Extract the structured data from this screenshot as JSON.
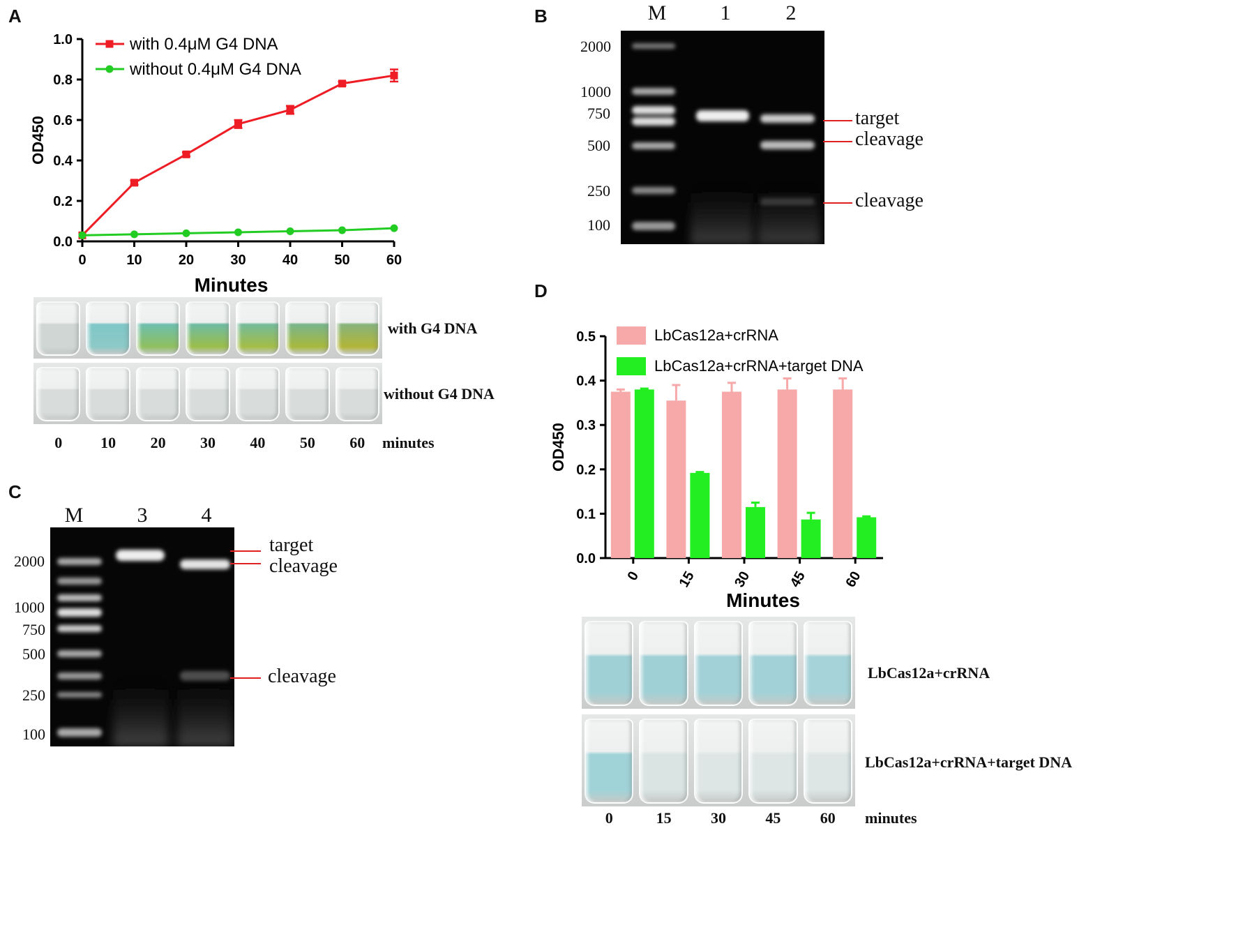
{
  "panels": {
    "a": {
      "letter": "A"
    },
    "b": {
      "letter": "B"
    },
    "c": {
      "letter": "C"
    },
    "d": {
      "letter": "D"
    }
  },
  "chart_data": [
    {
      "id": "A",
      "type": "line",
      "x": [
        0,
        10,
        20,
        30,
        40,
        50,
        60
      ],
      "series": [
        {
          "name": "with 0.4μM G4 DNA",
          "color": "#ee1c25",
          "values": [
            0.03,
            0.29,
            0.43,
            0.58,
            0.65,
            0.78,
            0.82
          ],
          "errors": [
            0.0,
            0.01,
            0.01,
            0.02,
            0.02,
            0.01,
            0.03
          ]
        },
        {
          "name": "without 0.4μM G4 DNA",
          "color": "#22cc22",
          "values": [
            0.03,
            0.035,
            0.04,
            0.045,
            0.05,
            0.055,
            0.065
          ],
          "errors": [
            0,
            0,
            0,
            0,
            0,
            0,
            0
          ]
        }
      ],
      "xlabel": "Minutes",
      "ylabel": "OD450",
      "xlim": [
        0,
        60
      ],
      "ylim": [
        0,
        1.0
      ],
      "xticks": [
        "0",
        "10",
        "20",
        "30",
        "40",
        "50",
        "60"
      ],
      "yticks": [
        "0.0",
        "0.2",
        "0.4",
        "0.6",
        "0.8",
        "1.0"
      ],
      "legend": "top-left"
    },
    {
      "id": "D",
      "type": "bar",
      "categories": [
        "0",
        "15",
        "30",
        "45",
        "60"
      ],
      "series": [
        {
          "name": "LbCas12a+crRNA",
          "color": "#f7a8a8",
          "values": [
            0.375,
            0.355,
            0.375,
            0.38,
            0.38
          ],
          "errors": [
            0.005,
            0.035,
            0.02,
            0.025,
            0.025
          ]
        },
        {
          "name": "LbCas12a+crRNA+target DNA",
          "color": "#22ee22",
          "values": [
            0.38,
            0.192,
            0.115,
            0.087,
            0.092
          ],
          "errors": [
            0.002,
            0.002,
            0.01,
            0.015,
            0.002
          ]
        }
      ],
      "xlabel": "Minutes",
      "ylabel": "OD450",
      "ylim": [
        0,
        0.5
      ],
      "yticks": [
        "0.0",
        "0.1",
        "0.2",
        "0.3",
        "0.4",
        "0.5"
      ],
      "legend": "top-left"
    }
  ],
  "vials_a": {
    "rows": [
      {
        "label": "with G4 DNA",
        "colors": [
          "#cfd6d4",
          "#7fc7c8",
          "#6dbfae",
          "#6fbba3",
          "#74bb9a",
          "#79b58c",
          "#86b47c"
        ],
        "bottom": [
          "#cfd6d4",
          "#8cc9c6",
          "#8fbf5e",
          "#9bbd4a",
          "#a3bd45",
          "#a7b93c",
          "#b2b536"
        ]
      },
      {
        "label": "without G4 DNA",
        "colors": [
          "#d8dcda",
          "#d8dcda",
          "#d8dcda",
          "#d8dcda",
          "#d8dcda",
          "#d8dcda",
          "#d8dcda"
        ],
        "bottom": [
          "#d8dcda",
          "#d8dcda",
          "#d8dcda",
          "#d8dcda",
          "#d8dcda",
          "#d8dcda",
          "#d8dcda"
        ]
      }
    ],
    "times": [
      "0",
      "10",
      "20",
      "30",
      "40",
      "50",
      "60"
    ],
    "unit": "minutes"
  },
  "gel_b": {
    "lanes": [
      "M",
      "1",
      "2"
    ],
    "markers": [
      "2000",
      "1000",
      "750",
      "500",
      "250",
      "100"
    ],
    "annotations": [
      "target",
      "cleavage",
      "cleavage"
    ]
  },
  "gel_c": {
    "lanes": [
      "M",
      "3",
      "4"
    ],
    "markers": [
      "2000",
      "1000",
      "750",
      "500",
      "250",
      "100"
    ],
    "annotations": [
      "target",
      "cleavage",
      "cleavage"
    ]
  },
  "vials_d": {
    "rows": [
      {
        "label": "LbCas12a+crRNA",
        "colors": [
          "#9fd0d6",
          "#9fd0d6",
          "#a2d2d8",
          "#a2d2d8",
          "#a6d3d9"
        ]
      },
      {
        "label": "LbCas12a+crRNA+target DNA",
        "colors": [
          "#9fd3d8",
          "#d9e4e3",
          "#dde6e5",
          "#dde6e5",
          "#dde6e5"
        ]
      }
    ],
    "times": [
      "0",
      "15",
      "30",
      "45",
      "60"
    ],
    "unit": "minutes"
  }
}
